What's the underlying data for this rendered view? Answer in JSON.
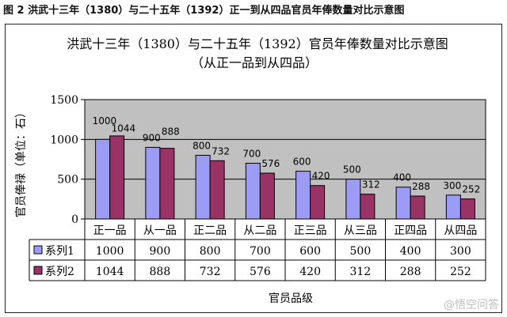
{
  "caption": "图 2 洪武十三年（1380）与二十五年（1392）正一到从四品官员年俸数量对比示意图",
  "watermark": "@悟空问答",
  "colors": {
    "series1": "#9c9cf7",
    "series2": "#993366",
    "plot_bg": "#c0c0c0"
  },
  "chart_data": {
    "type": "bar",
    "title": "洪武十三年（1380）与二十五年（1392）官员年俸数量对比示意图",
    "subtitle": "（从正一品到从四品）",
    "ylabel": "官员俸禄（单位：石）",
    "xlabel": "官员品级",
    "ylim": [
      0,
      1500
    ],
    "yticks": [
      0,
      500,
      1000,
      1500
    ],
    "grid": true,
    "categories": [
      "正一品",
      "从一品",
      "正二品",
      "从二品",
      "正三品",
      "从三品",
      "正四品",
      "从四品"
    ],
    "series": [
      {
        "name": "系列1",
        "values": [
          1000,
          900,
          800,
          700,
          600,
          500,
          400,
          300
        ]
      },
      {
        "name": "系列2",
        "values": [
          1044,
          888,
          732,
          576,
          420,
          312,
          288,
          252
        ]
      }
    ],
    "legend": "data-table"
  }
}
